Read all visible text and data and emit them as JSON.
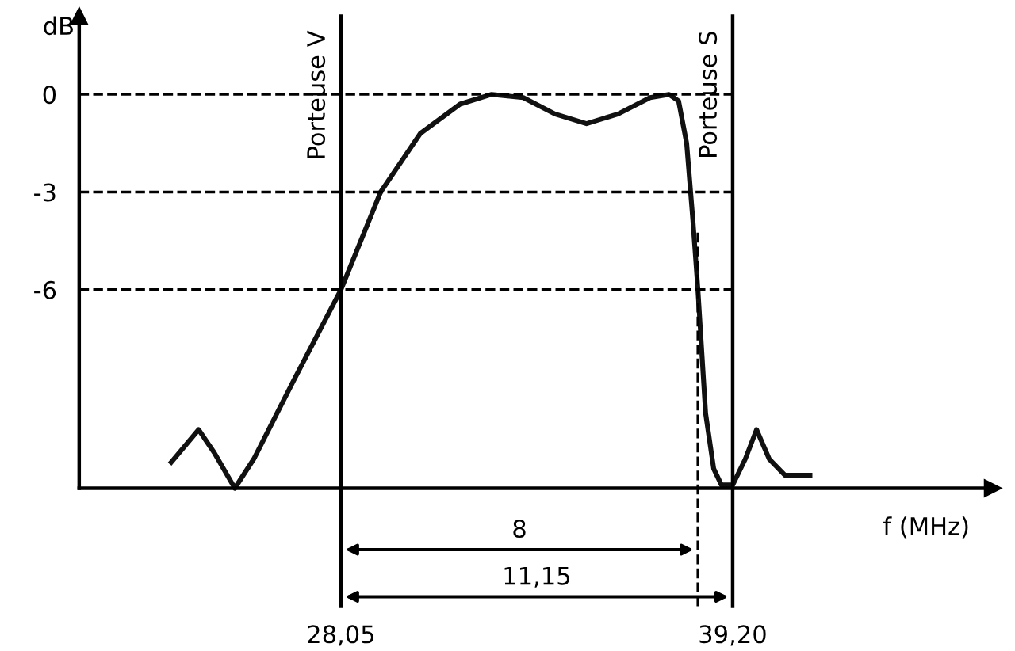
{
  "chart_data": {
    "type": "line",
    "xlabel": "f (MHz)",
    "ylabel": "dB",
    "x": [
      23.22,
      24.0,
      24.44,
      25.03,
      25.57,
      26.7,
      28.05,
      29.18,
      30.31,
      31.44,
      32.34,
      33.24,
      34.14,
      35.04,
      35.94,
      36.85,
      37.39,
      37.66,
      37.89,
      38.07,
      38.21,
      38.43,
      38.66,
      38.88,
      39.2,
      39.56,
      39.88,
      40.24,
      40.69,
      41.4
    ],
    "series": [
      {
        "color": "#111111",
        "values": [
          -11.3,
          -10.3,
          -11.0,
          -12.1,
          -11.2,
          -8.8,
          -6.0,
          -3.0,
          -1.2,
          -0.3,
          0,
          -0.1,
          -0.6,
          -0.9,
          -0.6,
          -0.1,
          0,
          -0.2,
          -1.5,
          -3.9,
          -6.0,
          -9.8,
          -11.5,
          -12.0,
          -12.0,
          -11.2,
          -10.3,
          -11.2,
          -11.7,
          -11.7
        ]
      }
    ],
    "xlim": [
      20.6,
      46.6
    ],
    "ylim": [
      -12.1,
      2.4
    ],
    "xticks": [
      {
        "value": 28.05,
        "label": "28,05"
      },
      {
        "value": 39.2,
        "label": "39,20"
      }
    ],
    "yticks": [
      0,
      -3,
      -6
    ],
    "ref_lines": [
      {
        "axis": "x",
        "value": 28.05,
        "label": "Porteuse V",
        "line_style": "solid"
      },
      {
        "axis": "x",
        "value": 39.2,
        "label": "Porteuse S",
        "line_style": "solid"
      },
      {
        "axis": "x",
        "value": 38.21,
        "line_style": "dashed"
      },
      {
        "axis": "y",
        "value": 0,
        "line_style": "dashed"
      },
      {
        "axis": "y",
        "value": -3,
        "line_style": "dashed"
      },
      {
        "axis": "y",
        "value": -6,
        "line_style": "dashed"
      }
    ],
    "annotations": [
      "8",
      "11,15"
    ],
    "grid": false,
    "marker": "none",
    "line_style": "solid"
  }
}
